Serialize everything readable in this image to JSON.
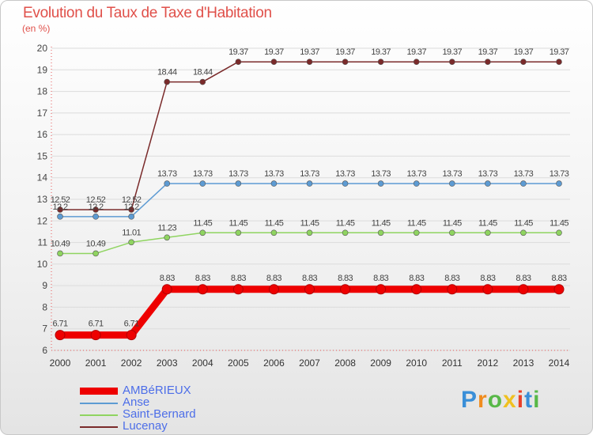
{
  "chart_data": {
    "type": "line",
    "title": "Evolution du Taux de Taxe d'Habitation",
    "subtitle": "(en %)",
    "xlabel": "",
    "ylabel": "",
    "categories": [
      "2000",
      "2001",
      "2002",
      "2003",
      "2004",
      "2005",
      "2006",
      "2007",
      "2008",
      "2009",
      "2010",
      "2011",
      "2012",
      "2013",
      "2014"
    ],
    "ylim": [
      6,
      20
    ],
    "yticks": [
      "6",
      "7",
      "8",
      "9",
      "10",
      "11",
      "12",
      "13",
      "14",
      "15",
      "16",
      "17",
      "18",
      "19",
      "20"
    ],
    "grid": "horizontal",
    "legend_position": "bottom-left",
    "series": [
      {
        "name": "AMBéRIEUX",
        "color": "#ee0000",
        "values": [
          6.71,
          6.71,
          6.71,
          8.83,
          8.83,
          8.83,
          8.83,
          8.83,
          8.83,
          8.83,
          8.83,
          8.83,
          8.83,
          8.83,
          8.83
        ],
        "labels": [
          "6.71",
          "6.71",
          "6.71",
          "8.83",
          "8.83",
          "8.83",
          "8.83",
          "8.83",
          "8.83",
          "8.83",
          "8.83",
          "8.83",
          "8.83",
          "8.83",
          "8.83"
        ]
      },
      {
        "name": "Anse",
        "color": "#5d9bd3",
        "values": [
          12.2,
          12.2,
          12.2,
          13.73,
          13.73,
          13.73,
          13.73,
          13.73,
          13.73,
          13.73,
          13.73,
          13.73,
          13.73,
          13.73,
          13.73
        ],
        "labels": [
          "12.2",
          "12.2",
          "12.2",
          "13.73",
          "13.73",
          "13.73",
          "13.73",
          "13.73",
          "13.73",
          "13.73",
          "13.73",
          "13.73",
          "13.73",
          "13.73",
          "13.73"
        ]
      },
      {
        "name": "Saint-Bernard",
        "color": "#8fd460",
        "values": [
          10.49,
          10.49,
          11.01,
          11.23,
          11.45,
          11.45,
          11.45,
          11.45,
          11.45,
          11.45,
          11.45,
          11.45,
          11.45,
          11.45,
          11.45
        ],
        "labels": [
          "10.49",
          "10.49",
          "11.01",
          "11.23",
          "11.45",
          "11.45",
          "11.45",
          "11.45",
          "11.45",
          "11.45",
          "11.45",
          "11.45",
          "11.45",
          "11.45",
          "11.45"
        ]
      },
      {
        "name": "Lucenay",
        "color": "#7a2a2a",
        "values": [
          12.52,
          12.52,
          12.52,
          18.44,
          18.44,
          19.37,
          19.37,
          19.37,
          19.37,
          19.37,
          19.37,
          19.37,
          19.37,
          19.37,
          19.37
        ],
        "labels": [
          "12.52",
          "12.52",
          "12.52",
          "18.44",
          "18.44",
          "19.37",
          "19.37",
          "19.37",
          "19.37",
          "19.37",
          "19.37",
          "19.37",
          "19.37",
          "19.37",
          "19.37"
        ]
      }
    ]
  },
  "logo": {
    "letters": [
      "P",
      "r",
      "o",
      "x",
      "i",
      "t",
      "i"
    ],
    "colors": [
      "#3a8fd8",
      "#f08c1e",
      "#58b848",
      "#f0c020",
      "#e8402a",
      "#3a8fd8",
      "#58b848"
    ]
  }
}
